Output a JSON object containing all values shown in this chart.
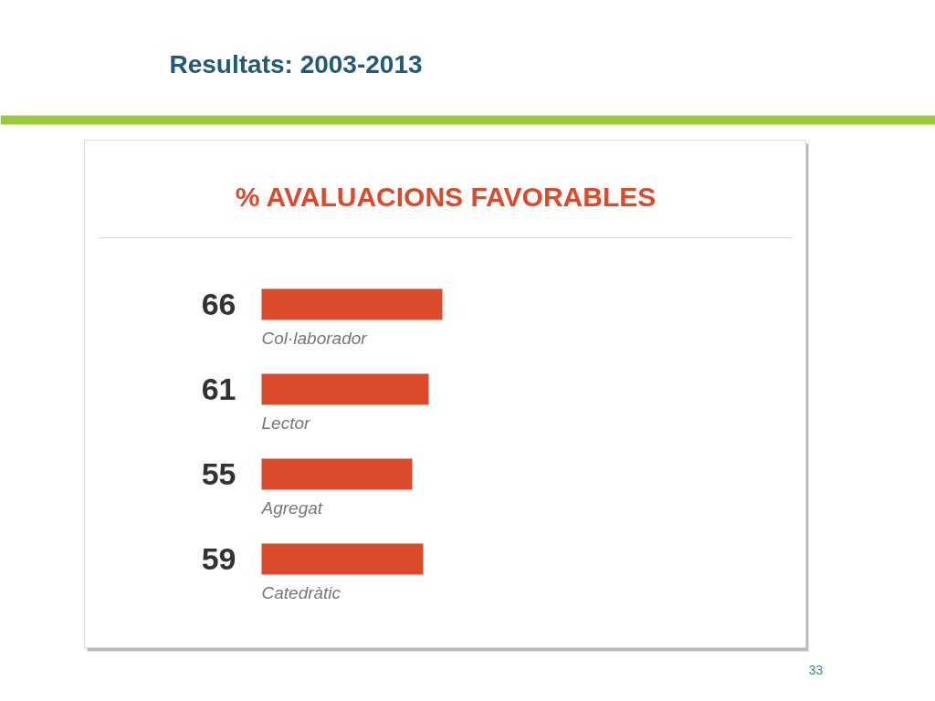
{
  "chart_data": {
    "type": "bar",
    "orientation": "horizontal",
    "title": "Resultats: 2003-2013",
    "subtitle": "% AVALUACIONS FAVORABLES",
    "categories": [
      "Col·laborador",
      "Lector",
      "Agregat",
      "Catedràtic"
    ],
    "values": [
      66,
      61,
      55,
      59
    ],
    "color": "#dc4a2c",
    "data_labels": true,
    "annotations": [
      "33"
    ]
  }
}
